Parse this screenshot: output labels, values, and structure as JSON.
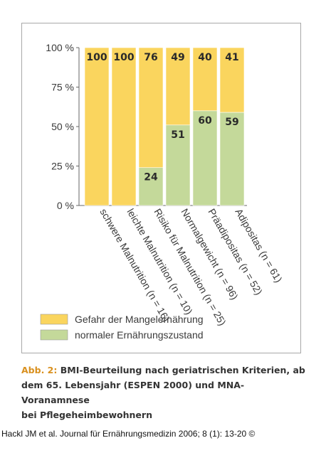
{
  "chart_data": {
    "type": "bar",
    "stacked": true,
    "categories": [
      "schwere Malnutrition (n = 16)",
      "leichte Malnutrition (n = 10)",
      "Risiko für Malnutrition (n = 25)",
      "Normalgewicht (n = 96)",
      "Präadipositas (n = 52)",
      "Adipositas (n = 61)"
    ],
    "series": [
      {
        "name": "normaler Ernährungszustand",
        "values": [
          0,
          0,
          24,
          51,
          60,
          59
        ],
        "color": "#c4d99a"
      },
      {
        "name": "Gefahr der Mangelernährung",
        "values": [
          100,
          100,
          76,
          49,
          40,
          41
        ],
        "color": "#fad55e"
      }
    ],
    "ylim": [
      0,
      100
    ],
    "yticks": [
      "0 %",
      "25 %",
      "50 %",
      "75 %",
      "100 %"
    ],
    "grid": false,
    "legend_placement": "bottom-left",
    "legend_order": [
      "Gefahr der Mangelernährung",
      "normaler Ernährungszustand"
    ]
  },
  "caption": {
    "prefix": "Abb. 2:",
    "line1": "BMI-Beurteilung nach geriatrischen Kriterien, ab",
    "line2": "dem 65. Lebensjahr (ESPEN 2000) und MNA-Voranamnese",
    "line3": "bei Pflegeheimbewohnern"
  },
  "citation": "Hackl JM et al. Journal für Ernährungsmedizin 2006; 8 (1): 13-20 ©"
}
